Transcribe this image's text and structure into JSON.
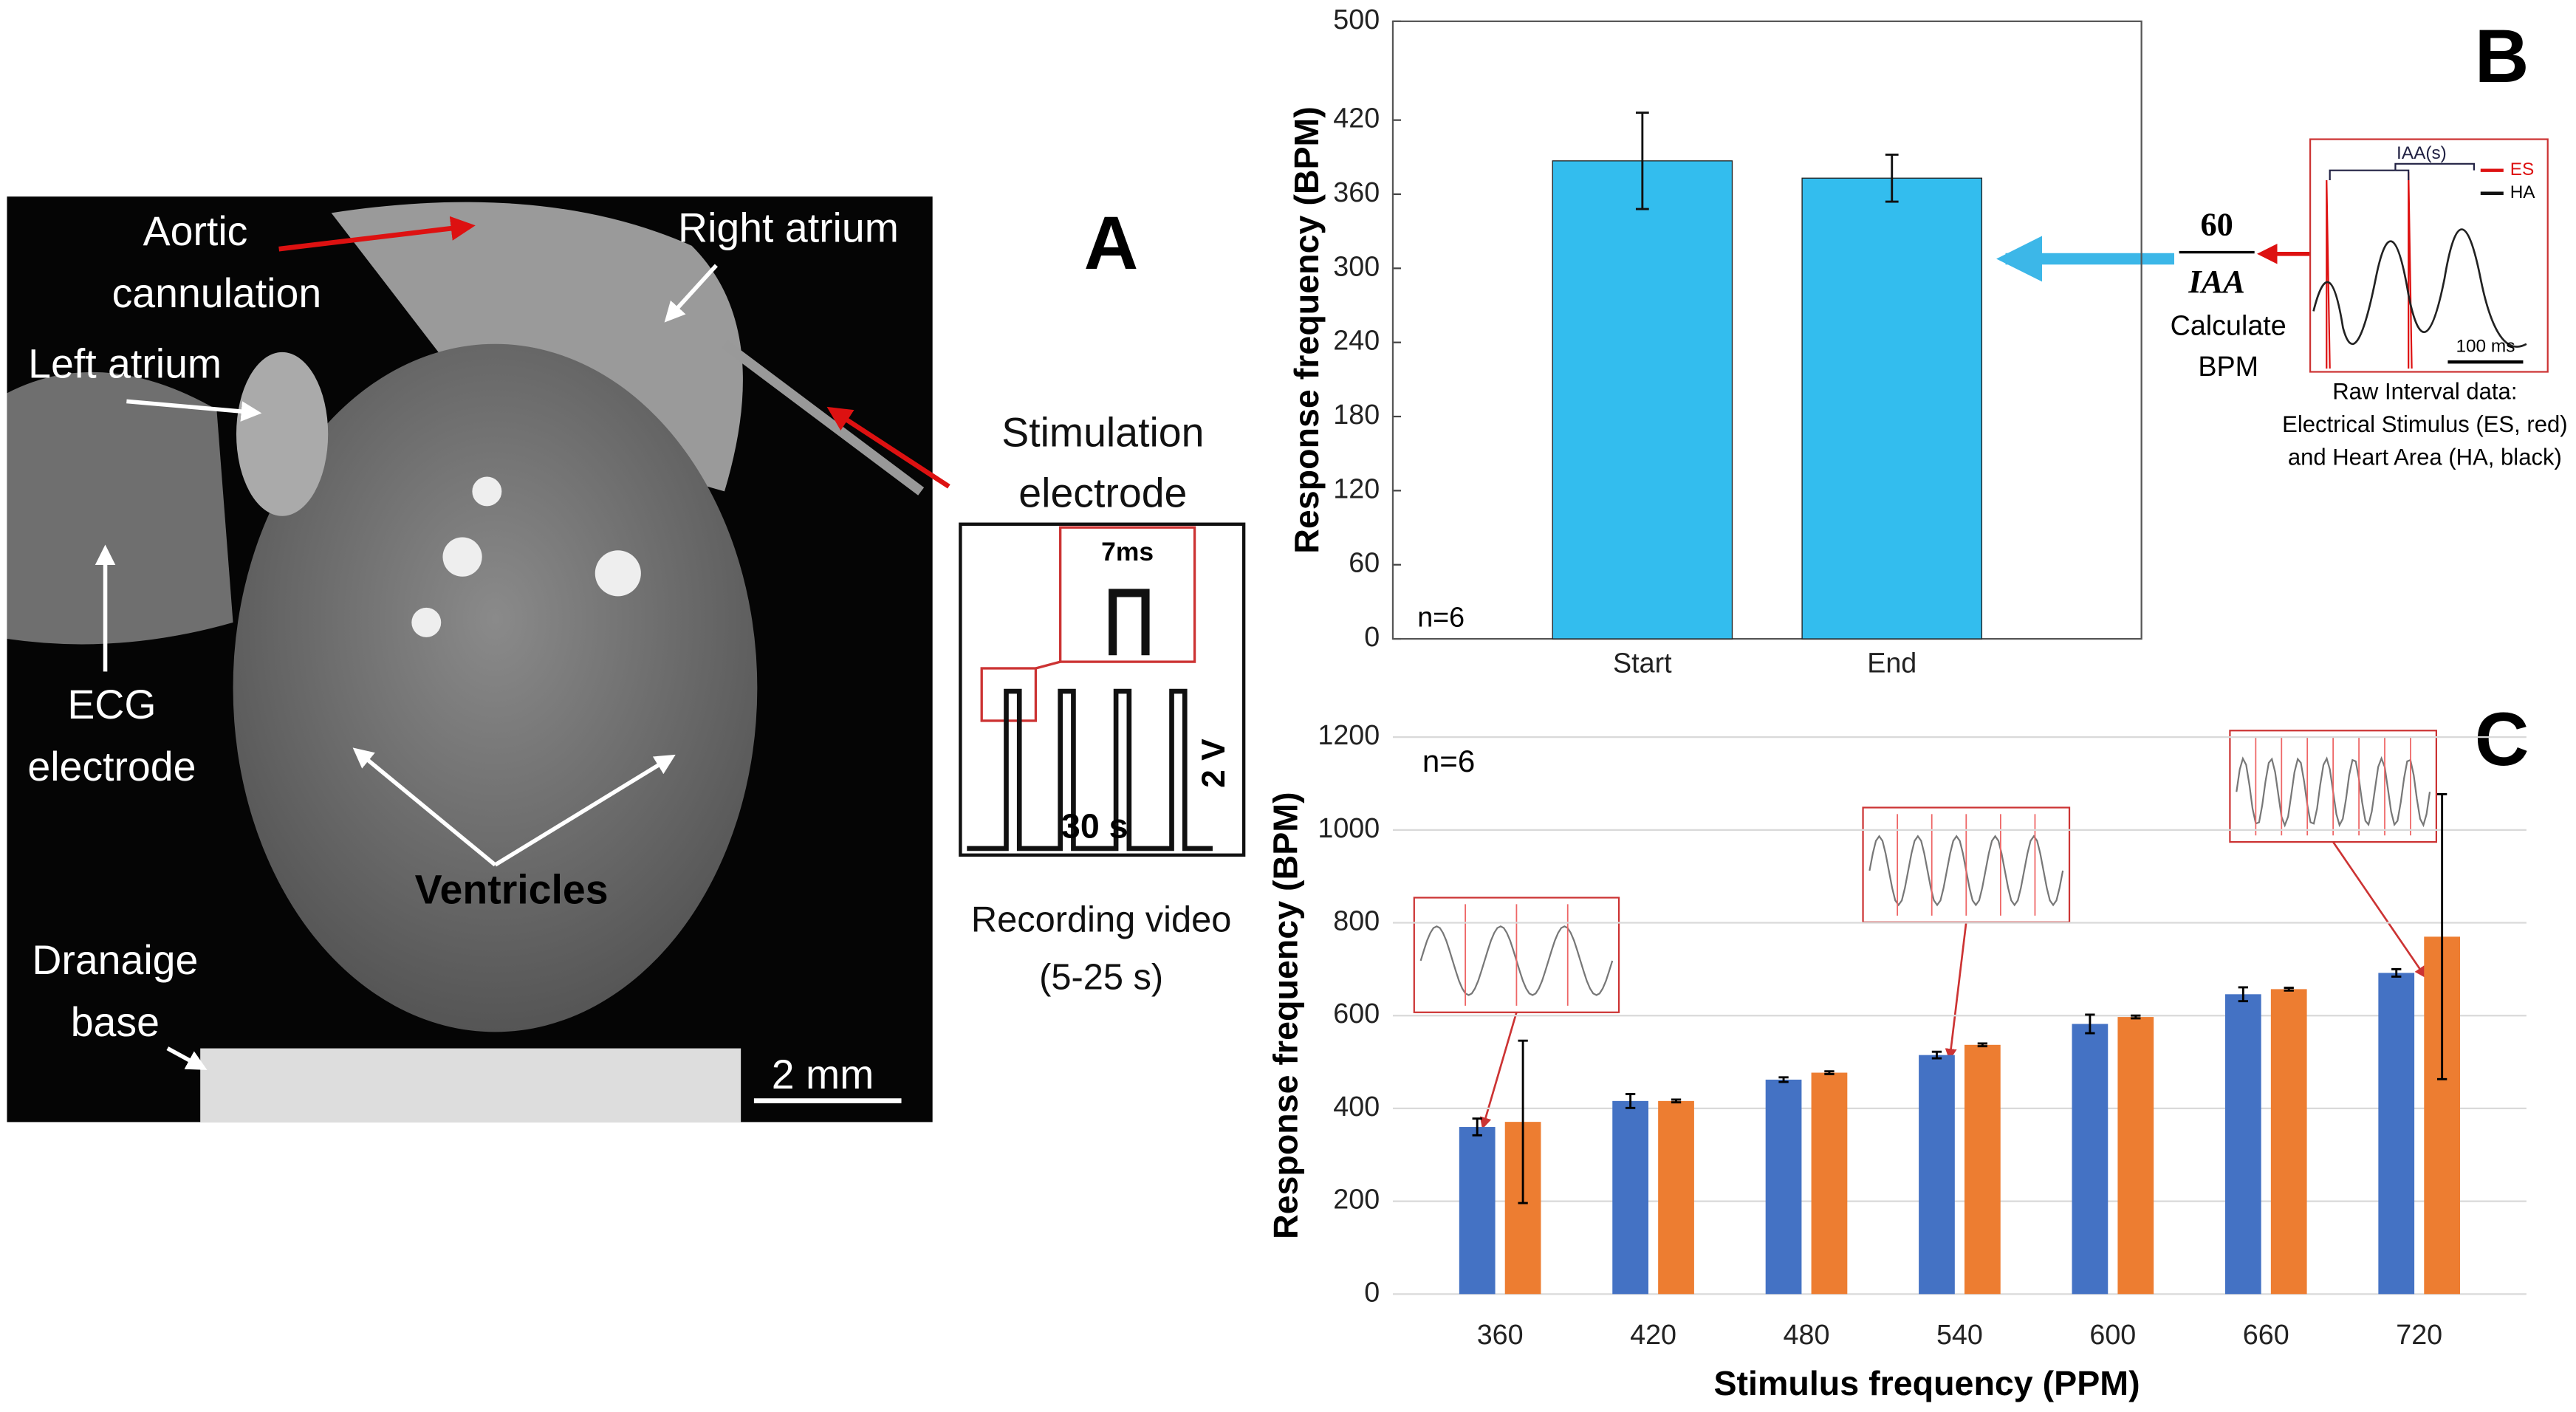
{
  "panel_labels": {
    "a": "A",
    "b": "B",
    "c": "C"
  },
  "panel_a": {
    "aortic_cannulation": [
      "Aortic",
      "cannulation"
    ],
    "right_atrium": "Right atrium",
    "left_atrium": "Left atrium",
    "ecg_electrode": [
      "ECG",
      "electrode"
    ],
    "ventricles": "Ventricles",
    "drainage_base": [
      "Dranaige",
      "base"
    ],
    "scale_bar": "2 mm",
    "stimulation_electrode": [
      "Stimulation",
      "electrode"
    ],
    "pulse_width": "7ms",
    "amplitude": "2 V",
    "duration": "30 s",
    "recording": [
      "Recording video",
      "(5-25 s)"
    ]
  },
  "panel_b_inset": {
    "numerator": "60",
    "denominator": "IAA",
    "calculate": [
      "Calculate",
      "BPM"
    ],
    "interval": "IAA(s)",
    "legend_es": "ES",
    "legend_ha": "HA",
    "time_scale": "100 ms",
    "caption": [
      "Raw Interval data:",
      "Electrical Stimulus (ES, red)",
      "and Heart Area (HA, black)"
    ]
  },
  "chart_data": [
    {
      "type": "bar",
      "ylabel": "Response frequency (BPM)",
      "annotation": "n=6",
      "categories": [
        "Start",
        "End"
      ],
      "values": [
        387,
        373
      ],
      "errors": [
        39,
        19
      ],
      "color": "#33bdee",
      "ylim": [
        0,
        500
      ],
      "yticks": [
        0,
        60,
        120,
        180,
        240,
        300,
        360,
        420,
        500
      ],
      "grid": false,
      "box": true
    },
    {
      "type": "grouped_bar",
      "ylabel": "Response frequency (BPM)",
      "xlabel": "Stimulus frequency (PPM)",
      "annotation": "n=6",
      "categories": [
        "360",
        "420",
        "480",
        "540",
        "600",
        "660",
        "720"
      ],
      "series": [
        {
          "color": "#4472c4",
          "values": [
            360,
            416,
            462,
            515,
            582,
            646,
            692
          ],
          "errors": [
            18,
            15,
            5,
            7,
            20,
            15,
            8
          ]
        },
        {
          "color": "#ed7d31",
          "values": [
            371,
            416,
            477,
            537,
            597,
            657,
            770
          ],
          "errors": [
            175,
            3,
            3,
            3,
            3,
            3,
            307
          ]
        }
      ],
      "ylim": [
        0,
        1200
      ],
      "yticks": [
        0,
        200,
        400,
        600,
        800,
        1000,
        1200
      ],
      "grid": true,
      "box": false
    }
  ]
}
